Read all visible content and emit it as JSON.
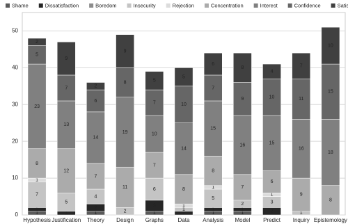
{
  "chart_data": {
    "type": "stacked_bar",
    "categories": [
      "Hypothesis",
      "Justification",
      "Theory",
      "Design",
      "Graphs",
      "Data",
      "Analysis",
      "Model",
      "Predict",
      "Inquiry",
      "Epistemology"
    ],
    "series": [
      {
        "name": "Shame",
        "color": "#5a5a5a",
        "values": [
          1,
          0,
          1,
          0,
          1,
          0,
          1,
          1,
          0,
          0,
          0
        ]
      },
      {
        "name": "Dissatisfaction",
        "color": "#262626",
        "values": [
          1,
          1,
          2,
          0,
          3,
          1,
          1,
          1,
          2,
          0,
          0
        ]
      },
      {
        "name": "Boredom",
        "color": "#8c8c8c",
        "values": [
          0,
          0,
          0,
          0,
          0,
          0,
          0,
          0,
          0,
          0,
          0
        ]
      },
      {
        "name": "Insecurity",
        "color": "#c4c4c4",
        "values": [
          7,
          5,
          4,
          2,
          6,
          1,
          5,
          2,
          3,
          1,
          0
        ]
      },
      {
        "name": "Rejection",
        "color": "#dcdcdc",
        "values": [
          1,
          0,
          0,
          0,
          0,
          1,
          1,
          0,
          1,
          0,
          0
        ]
      },
      {
        "name": "Concentration",
        "color": "#ababab",
        "values": [
          8,
          12,
          7,
          11,
          7,
          8,
          8,
          7,
          6,
          9,
          8
        ]
      },
      {
        "name": "Interest",
        "color": "#808080",
        "values": [
          23,
          13,
          14,
          19,
          10,
          14,
          15,
          16,
          15,
          16,
          18
        ]
      },
      {
        "name": "Confidence",
        "color": "#666666",
        "values": [
          5,
          7,
          6,
          8,
          7,
          10,
          7,
          9,
          10,
          11,
          15
        ]
      },
      {
        "name": "Satisfaction",
        "color": "#404040",
        "values": [
          2,
          9,
          2,
          9,
          5,
          5,
          6,
          8,
          4,
          7,
          10
        ]
      }
    ],
    "ylim": [
      0,
      55
    ],
    "yticks": [
      0,
      10,
      20,
      30,
      40,
      50
    ],
    "grid": true,
    "legend": "top"
  }
}
